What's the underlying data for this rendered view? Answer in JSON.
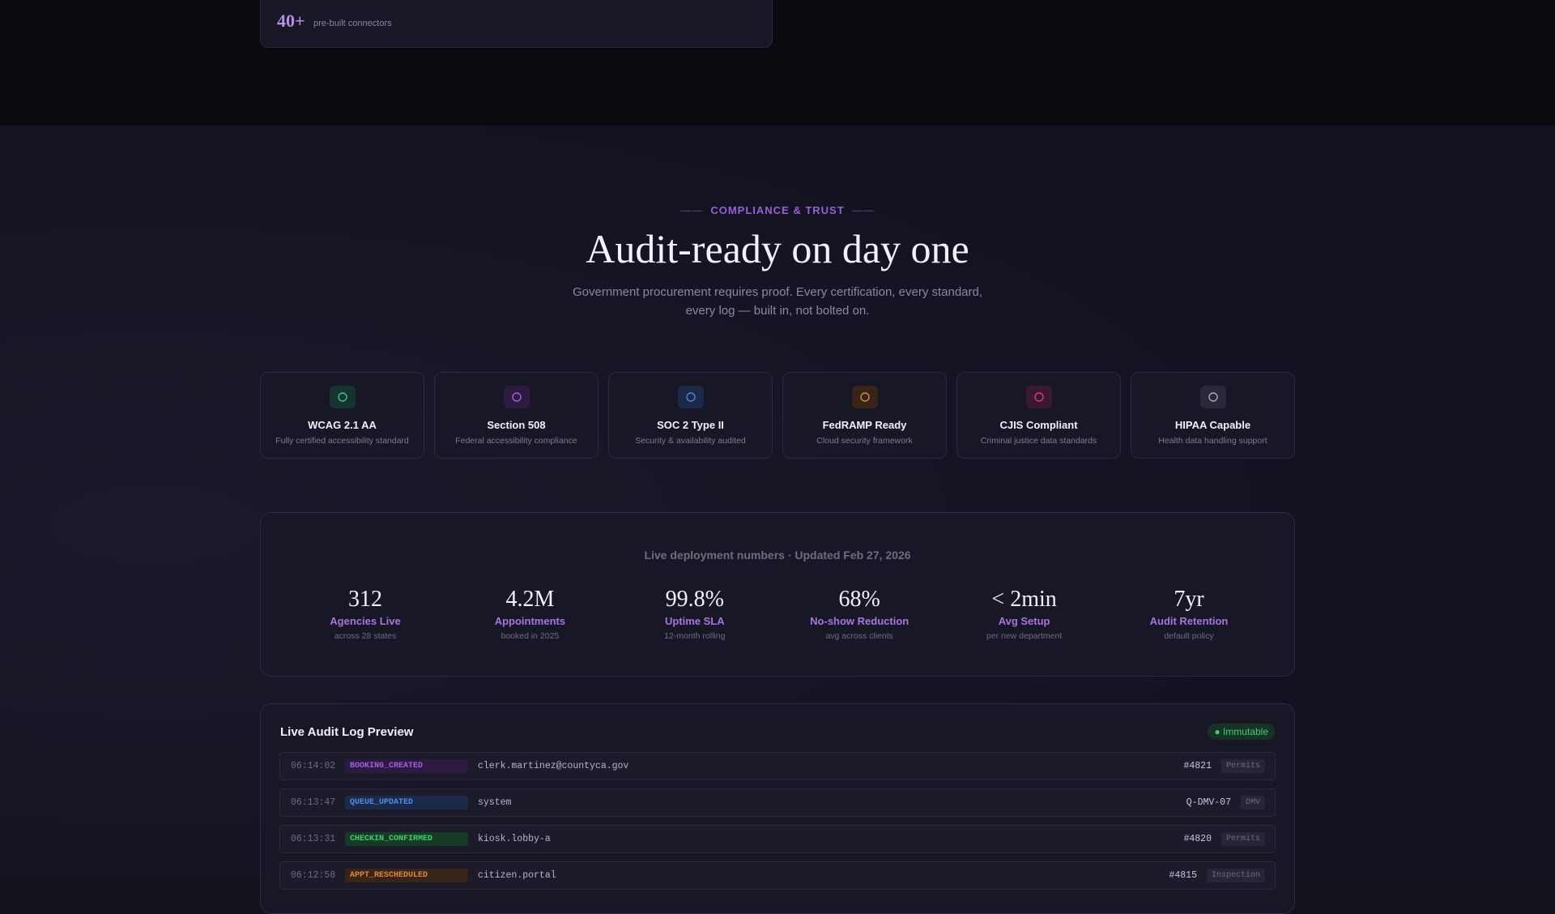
{
  "integrations": {
    "count": "40+",
    "label": "pre-built connectors"
  },
  "section": {
    "eyebrow": "COMPLIANCE & TRUST",
    "title": "Audit-ready on day one",
    "subtitle": "Government procurement requires proof. Every certification, every standard, every log — built in, not bolted on."
  },
  "certifications": [
    {
      "title": "WCAG 2.1 AA",
      "desc": "Fully certified accessibility standard"
    },
    {
      "title": "Section 508",
      "desc": "Federal accessibility compliance"
    },
    {
      "title": "SOC 2 Type II",
      "desc": "Security & availability audited"
    },
    {
      "title": "FedRAMP Ready",
      "desc": "Cloud security framework"
    },
    {
      "title": "CJIS Compliant",
      "desc": "Criminal justice data standards"
    },
    {
      "title": "HIPAA Capable",
      "desc": "Health data handling support"
    }
  ],
  "stats": {
    "caption": "Live deployment numbers · Updated Feb 27, 2026",
    "items": [
      {
        "value": "312",
        "label": "Agencies Live",
        "sub": "across 28 states"
      },
      {
        "value": "4.2M",
        "label": "Appointments",
        "sub": "booked in 2025"
      },
      {
        "value": "99.8%",
        "label": "Uptime SLA",
        "sub": "12-month rolling"
      },
      {
        "value": "68%",
        "label": "No-show Reduction",
        "sub": "avg across clients"
      },
      {
        "value": "< 2min",
        "label": "Avg Setup",
        "sub": "per new department"
      },
      {
        "value": "7yr",
        "label": "Audit Retention",
        "sub": "default policy"
      }
    ]
  },
  "audit_log": {
    "title": "Live Audit Log Preview",
    "badge": "● Immutable",
    "rows": [
      {
        "time": "06:14:02",
        "event": "BOOKING_CREATED",
        "actor": "clerk.martinez@countyca.gov",
        "ref": "#4821",
        "dept": "Permits"
      },
      {
        "time": "06:13:47",
        "event": "QUEUE_UPDATED",
        "actor": "system",
        "ref": "Q-DMV-07",
        "dept": "DMV"
      },
      {
        "time": "06:13:31",
        "event": "CHECKIN_CONFIRMED",
        "actor": "kiosk.lobby-a",
        "ref": "#4820",
        "dept": "Permits"
      },
      {
        "time": "06:12:58",
        "event": "APPT_RESCHEDULED",
        "actor": "citizen.portal",
        "ref": "#4815",
        "dept": "Inspection"
      }
    ]
  }
}
